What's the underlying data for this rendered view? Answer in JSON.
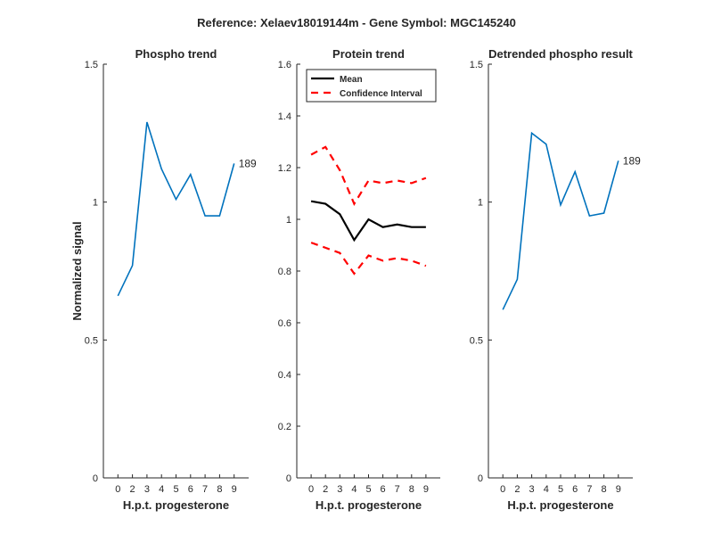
{
  "figure": {
    "suptitle": "Reference:  Xelaev18019144m - Gene Symbol:  MGC145240"
  },
  "colors": {
    "blue": "#0072BD",
    "mean": "#000000",
    "ci": "#FF0000",
    "axis": "#262626"
  },
  "chart_data": [
    {
      "type": "line",
      "title": "Phospho trend",
      "xlabel": "H.p.t. progesterone",
      "ylabel": "Normalized signal",
      "x_ticks": [
        "0",
        "2",
        "3",
        "4",
        "5",
        "6",
        "7",
        "8",
        "9"
      ],
      "ylim": [
        0,
        1.5
      ],
      "y_ticks": [
        "0",
        "0.5",
        "1",
        "1.5"
      ],
      "series": [
        {
          "values": [
            0.66,
            0.77,
            1.29,
            1.12,
            1.01,
            1.1,
            0.95,
            0.95,
            1.14
          ]
        }
      ],
      "annotation": {
        "text": "189",
        "index": 8
      }
    },
    {
      "type": "line",
      "title": "Protein trend",
      "xlabel": "H.p.t. progesterone",
      "ylabel": "",
      "x_ticks": [
        "0",
        "2",
        "3",
        "4",
        "5",
        "6",
        "7",
        "8",
        "9"
      ],
      "ylim": [
        0,
        1.6
      ],
      "y_ticks": [
        "0",
        "0.2",
        "0.4",
        "0.6",
        "0.8",
        "1",
        "1.2",
        "1.4",
        "1.6"
      ],
      "legend_position": "top-left",
      "series": [
        {
          "name": "Mean",
          "values": [
            1.07,
            1.06,
            1.02,
            0.92,
            1.0,
            0.97,
            0.98,
            0.97,
            0.97
          ]
        },
        {
          "name": "Confidence Interval",
          "values": [
            1.25,
            1.28,
            1.19,
            1.06,
            1.15,
            1.14,
            1.15,
            1.14,
            1.16
          ]
        },
        {
          "name": "Confidence Interval",
          "values": [
            0.91,
            0.89,
            0.87,
            0.79,
            0.86,
            0.84,
            0.85,
            0.84,
            0.82
          ]
        }
      ],
      "legend": [
        "Mean",
        "Confidence Interval"
      ]
    },
    {
      "type": "line",
      "title": "Detrended phospho result",
      "xlabel": "H.p.t. progesterone",
      "ylabel": "",
      "x_ticks": [
        "0",
        "2",
        "3",
        "4",
        "5",
        "6",
        "7",
        "8",
        "9"
      ],
      "ylim": [
        0,
        1.5
      ],
      "y_ticks": [
        "0",
        "0.5",
        "1",
        "1.5"
      ],
      "series": [
        {
          "values": [
            0.61,
            0.72,
            1.25,
            1.21,
            0.99,
            1.11,
            0.95,
            0.96,
            1.15
          ]
        }
      ],
      "annotation": {
        "text": "189",
        "index": 8
      }
    }
  ]
}
